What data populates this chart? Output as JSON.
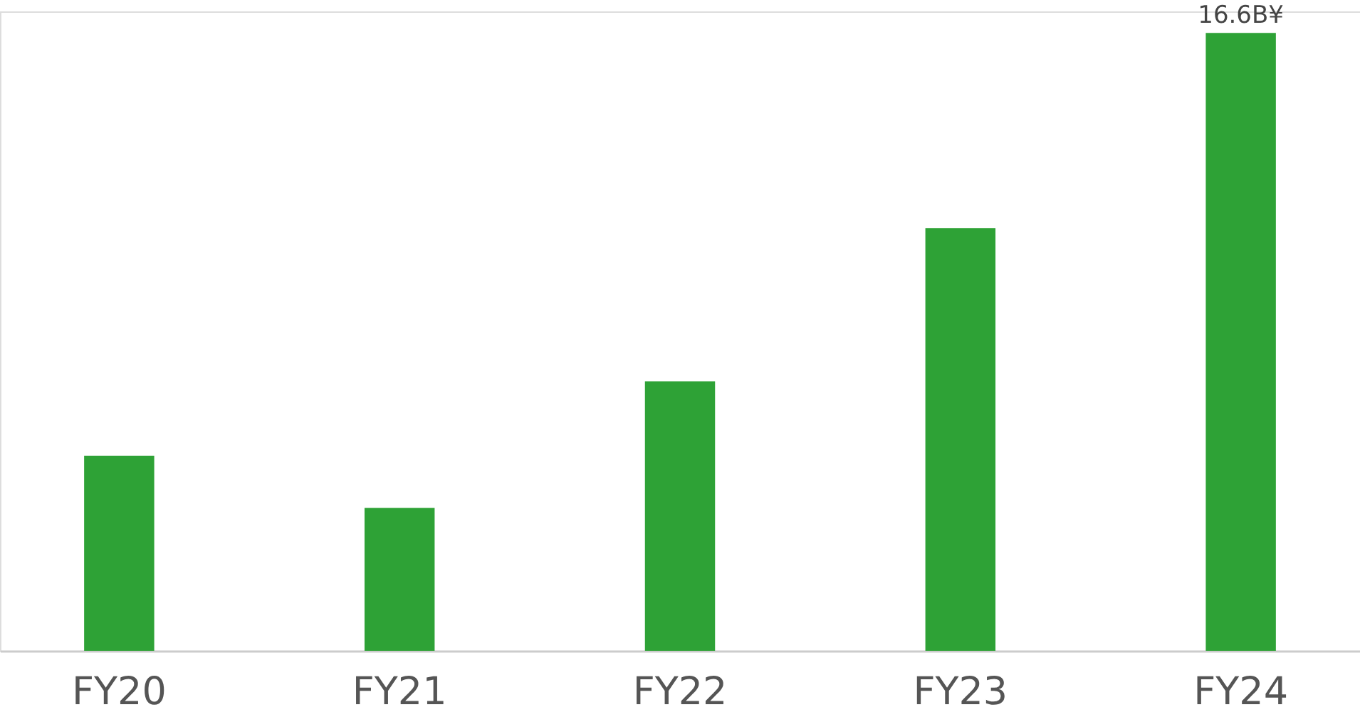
{
  "chart_data": {
    "type": "bar",
    "categories": [
      "FY20",
      "FY21",
      "FY22",
      "FY23",
      "FY24"
    ],
    "values": [
      5.24,
      3.84,
      7.24,
      11.36,
      16.6
    ],
    "color": "#2ea236",
    "value_labels": [
      null,
      null,
      null,
      null,
      "16.6B¥"
    ]
  }
}
